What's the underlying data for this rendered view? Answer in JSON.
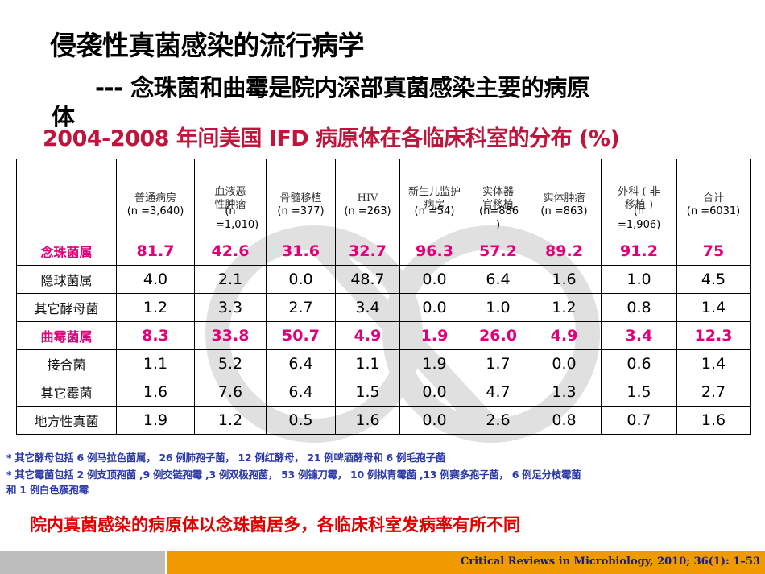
{
  "slide": {
    "title_line1": "侵袭性真菌感染的流行病学",
    "title_line2": "--- 念珠菌和曲霉是院内深部真菌感染主要的病原",
    "title_line2_wrap": "体",
    "subtitle": "2004-2008 年间美国 IFD 病原体在各临床科室的分布 (%)"
  },
  "table": {
    "columns": [
      {
        "label": "普通病房",
        "n": "(n =3,640)"
      },
      {
        "label": "血液恶性肿瘤",
        "n": "(n =1,010)"
      },
      {
        "label": "骨髓移植",
        "n": "(n =377)"
      },
      {
        "label": "HIV",
        "n": "(n =263)"
      },
      {
        "label": "新生儿监护病房",
        "n": "(n =54)"
      },
      {
        "label": "实体器官移植",
        "n": "(n=886 )"
      },
      {
        "label": "实体肿瘤",
        "n": "(n =863)"
      },
      {
        "label": "外科 ( 非移植 )",
        "n": "(n =1,906)"
      },
      {
        "label": "合计",
        "n": "(n =6031)"
      }
    ],
    "rows": [
      {
        "label": "念珠菌属",
        "highlight": true,
        "values": [
          "81.7",
          "42.6",
          "31.6",
          "32.7",
          "96.3",
          "57.2",
          "89.2",
          "91.2",
          "75"
        ]
      },
      {
        "label": "隐球菌属",
        "highlight": false,
        "values": [
          "4.0",
          "2.1",
          "0.0",
          "48.7",
          "0.0",
          "6.4",
          "1.6",
          "1.0",
          "4.5"
        ]
      },
      {
        "label": "其它酵母菌",
        "highlight": false,
        "values": [
          "1.2",
          "3.3",
          "2.7",
          "3.4",
          "0.0",
          "1.0",
          "1.2",
          "0.8",
          "1.4"
        ]
      },
      {
        "label": "曲霉菌属",
        "highlight": true,
        "values": [
          "8.3",
          "33.8",
          "50.7",
          "4.9",
          "1.9",
          "26.0",
          "4.9",
          "3.4",
          "12.3"
        ]
      },
      {
        "label": "接合菌",
        "highlight": false,
        "values": [
          "1.1",
          "5.2",
          "6.4",
          "1.1",
          "1.9",
          "1.7",
          "0.0",
          "0.6",
          "1.4"
        ]
      },
      {
        "label": "其它霉菌",
        "highlight": false,
        "values": [
          "1.6",
          "7.6",
          "6.4",
          "1.5",
          "0.0",
          "4.7",
          "1.3",
          "1.5",
          "2.7"
        ]
      },
      {
        "label": "地方性真菌",
        "highlight": false,
        "values": [
          "1.9",
          "1.2",
          "0.5",
          "1.6",
          "0.0",
          "2.6",
          "0.8",
          "0.7",
          "1.6"
        ]
      }
    ]
  },
  "footnotes": {
    "line1": "* 其它酵母包括 6 例马拉色菌属， 26 例肺孢子菌， 12 例红酵母， 21 例啤酒酵母和 6 例毛孢子菌",
    "line2": "* 其它霉菌包括 2 例支顶孢菌 ,9 例交链孢霉 ,3 例双极孢菌， 53 例镰刀霉， 10 例拟青霉菌 ,13 例赛多孢子菌， 6 例足分枝霉菌",
    "line3": "和 1 例白色簇孢霉"
  },
  "conclusion": "院内真菌感染的病原体以念珠菌居多，各临床科室发病率有所不同",
  "citation": "Critical Reviews in Microbiology, 2010; 36(1): 1–53",
  "colors": {
    "highlight": "#e2007a",
    "subtitle": "#c0143c",
    "conclusion": "#e00000",
    "footnote": "#2b3aa7",
    "bar_gray": "#bdbdbd",
    "bar_orange": "#ef9a00"
  }
}
